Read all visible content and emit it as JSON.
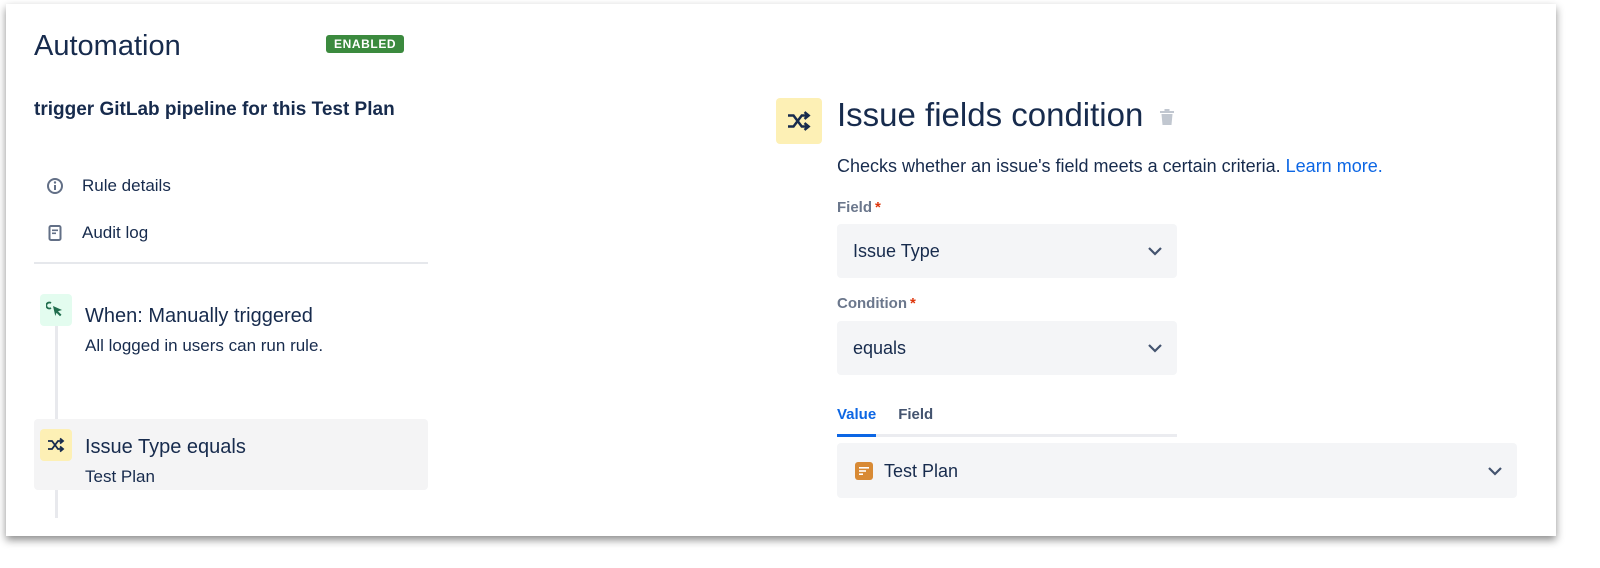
{
  "header": {
    "title": "Automation",
    "status_badge": "ENABLED"
  },
  "rule": {
    "name": "trigger GitLab pipeline for this Test Plan"
  },
  "nav": [
    {
      "label": "Rule details",
      "icon": "info-icon"
    },
    {
      "label": "Audit log",
      "icon": "document-icon"
    }
  ],
  "steps": [
    {
      "title": "When: Manually triggered",
      "subtitle": "All logged in users can run rule.",
      "icon": "cursor-click-icon",
      "icon_bg": "#e3fcef",
      "icon_color": "#216e4e"
    },
    {
      "title": "Issue Type equals",
      "subtitle": "Test Plan",
      "icon": "shuffle-icon",
      "icon_bg": "#fdf0b5",
      "icon_color": "#172b4d"
    }
  ],
  "panel": {
    "title": "Issue fields condition",
    "description": "Checks whether an issue's field meets a certain criteria.",
    "learn_more": "Learn more.",
    "field_label": "Field",
    "field_value": "Issue Type",
    "condition_label": "Condition",
    "condition_value": "equals",
    "required_marker": "*",
    "tabs": [
      {
        "label": "Value",
        "active": true
      },
      {
        "label": "Field",
        "active": false
      }
    ],
    "value_selected": "Test Plan"
  },
  "colors": {
    "accent": "#0c66e4",
    "enabled": "#3b8a3e",
    "required": "#de350b",
    "test_plan_icon": "#d88a35"
  }
}
